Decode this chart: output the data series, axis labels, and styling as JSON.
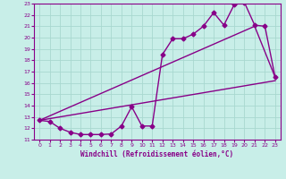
{
  "xlabel": "Windchill (Refroidissement éolien,°C)",
  "bg_color": "#c8eee8",
  "grid_color": "#a8d8d0",
  "line_color": "#880088",
  "xlim": [
    -0.5,
    23.5
  ],
  "ylim": [
    11,
    23
  ],
  "xticks": [
    0,
    1,
    2,
    3,
    4,
    5,
    6,
    7,
    8,
    9,
    10,
    11,
    12,
    13,
    14,
    15,
    16,
    17,
    18,
    19,
    20,
    21,
    22,
    23
  ],
  "yticks": [
    11,
    12,
    13,
    14,
    15,
    16,
    17,
    18,
    19,
    20,
    21,
    22,
    23
  ],
  "series1_x": [
    0,
    1,
    2,
    3,
    4,
    5,
    6,
    7,
    8,
    9,
    10,
    11,
    12,
    13,
    14,
    15,
    16,
    17,
    18,
    19,
    20,
    21,
    22,
    23
  ],
  "series1_y": [
    12.7,
    12.6,
    12.0,
    11.65,
    11.45,
    11.45,
    11.45,
    11.5,
    12.2,
    13.9,
    12.2,
    12.2,
    18.5,
    19.9,
    19.9,
    20.3,
    21.0,
    22.2,
    21.1,
    22.9,
    23.1,
    21.1,
    21.0,
    16.5
  ],
  "series2_x": [
    0,
    21,
    23
  ],
  "series2_y": [
    12.7,
    21.0,
    16.5
  ],
  "series3_x": [
    0,
    23
  ],
  "series3_y": [
    12.7,
    16.2
  ],
  "marker": "D",
  "marker_size": 2.5,
  "line_width": 1.0
}
